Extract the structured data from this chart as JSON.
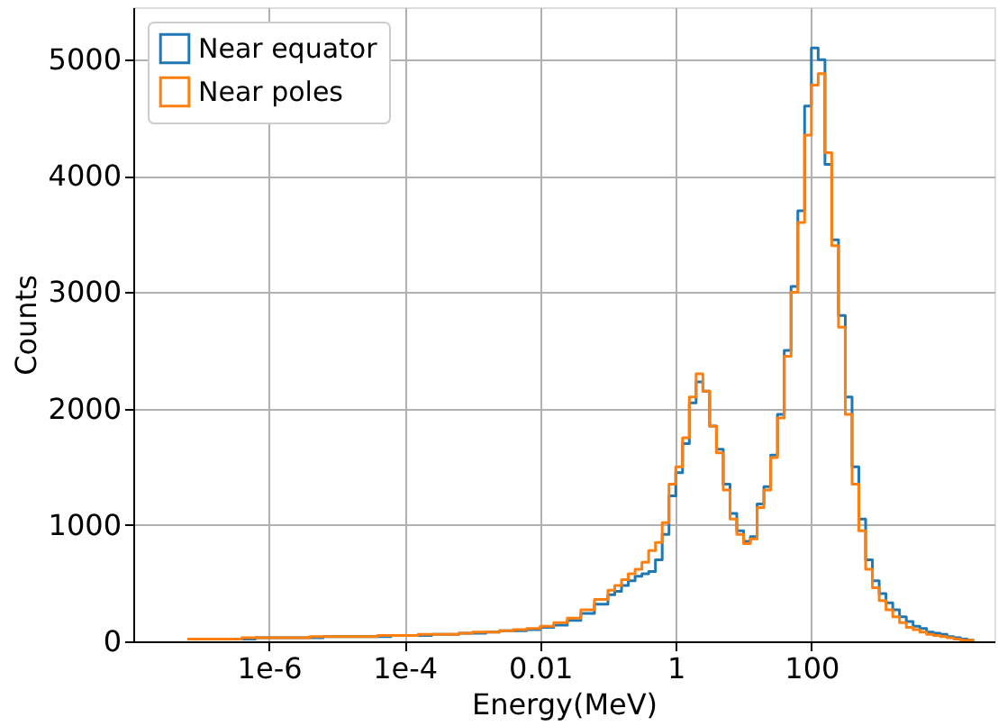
{
  "chart_data": {
    "type": "histogram",
    "xlabel": "Energy(MeV)",
    "ylabel": "Counts",
    "log": "x",
    "grid": true,
    "legend": "top left",
    "xlim": [
      1e-08,
      50000
    ],
    "xticks": [
      {
        "value": 1e-06,
        "label": "1e-6"
      },
      {
        "value": 0.0001,
        "label": "1e-4"
      },
      0.01,
      1,
      100
    ],
    "ylim": [
      0,
      5450
    ],
    "yticks": [
      0,
      1000,
      2000,
      3000,
      4000,
      5000
    ],
    "bins": [
      6.31e-08,
      1e-07,
      1.585e-07,
      2.512e-07,
      3.981e-07,
      6.31e-07,
      1e-06,
      1.585e-06,
      2.512e-06,
      3.981e-06,
      6.31e-06,
      1e-05,
      1.585e-05,
      2.512e-05,
      3.981e-05,
      6.31e-05,
      0.0001,
      0.0001585,
      0.0002512,
      0.0003981,
      0.000631,
      0.001,
      0.001585,
      0.002512,
      0.003981,
      0.00631,
      0.01,
      0.01585,
      0.02512,
      0.03981,
      0.0631,
      0.1,
      0.1259,
      0.1585,
      0.1995,
      0.2512,
      0.3162,
      0.3981,
      0.5012,
      0.631,
      0.7943,
      1,
      1.259,
      1.585,
      1.995,
      2.512,
      3.162,
      3.981,
      5.012,
      6.31,
      7.943,
      10,
      12.59,
      15.85,
      19.95,
      25.12,
      31.62,
      39.81,
      50.12,
      63.1,
      79.43,
      100,
      125.9,
      158.5,
      199.5,
      251.2,
      316.2,
      398.1,
      501.2,
      631,
      794.3,
      1000,
      1259,
      1585,
      1995,
      2512,
      3162,
      3981,
      5012,
      6310,
      7943,
      10000,
      12590,
      15850,
      19950,
      25120
    ],
    "series": [
      {
        "name": "Near equator",
        "color": "#1f77b4",
        "values": [
          20,
          20,
          20,
          20,
          20,
          30,
          30,
          30,
          30,
          30,
          40,
          40,
          40,
          40,
          40,
          50,
          50,
          50,
          60,
          60,
          70,
          70,
          80,
          90,
          90,
          100,
          120,
          140,
          180,
          240,
          320,
          400,
          430,
          480,
          520,
          560,
          580,
          600,
          700,
          920,
          1250,
          1450,
          1700,
          2050,
          2230,
          2150,
          1850,
          1650,
          1350,
          1100,
          950,
          860,
          900,
          1180,
          1330,
          1600,
          1950,
          2500,
          3050,
          3700,
          4600,
          5100,
          5000,
          4100,
          3450,
          2800,
          2100,
          1500,
          1050,
          700,
          520,
          410,
          330,
          270,
          210,
          170,
          130,
          110,
          80,
          70,
          60,
          40,
          30,
          20,
          10
        ]
      },
      {
        "name": "Near poles",
        "color": "#ff7f0e",
        "values": [
          20,
          20,
          20,
          20,
          30,
          30,
          30,
          30,
          30,
          40,
          40,
          40,
          40,
          40,
          50,
          50,
          50,
          60,
          60,
          60,
          70,
          80,
          80,
          90,
          100,
          110,
          130,
          160,
          200,
          270,
          360,
          440,
          480,
          530,
          580,
          620,
          680,
          780,
          850,
          1020,
          1350,
          1500,
          1750,
          2100,
          2300,
          2150,
          1850,
          1620,
          1300,
          1050,
          920,
          840,
          880,
          1150,
          1300,
          1580,
          1920,
          2450,
          3000,
          3600,
          4350,
          4780,
          4880,
          4200,
          3400,
          2700,
          1950,
          1350,
          950,
          620,
          460,
          350,
          270,
          210,
          160,
          120,
          100,
          80,
          60,
          50,
          40,
          30,
          20,
          10,
          10
        ]
      }
    ]
  }
}
